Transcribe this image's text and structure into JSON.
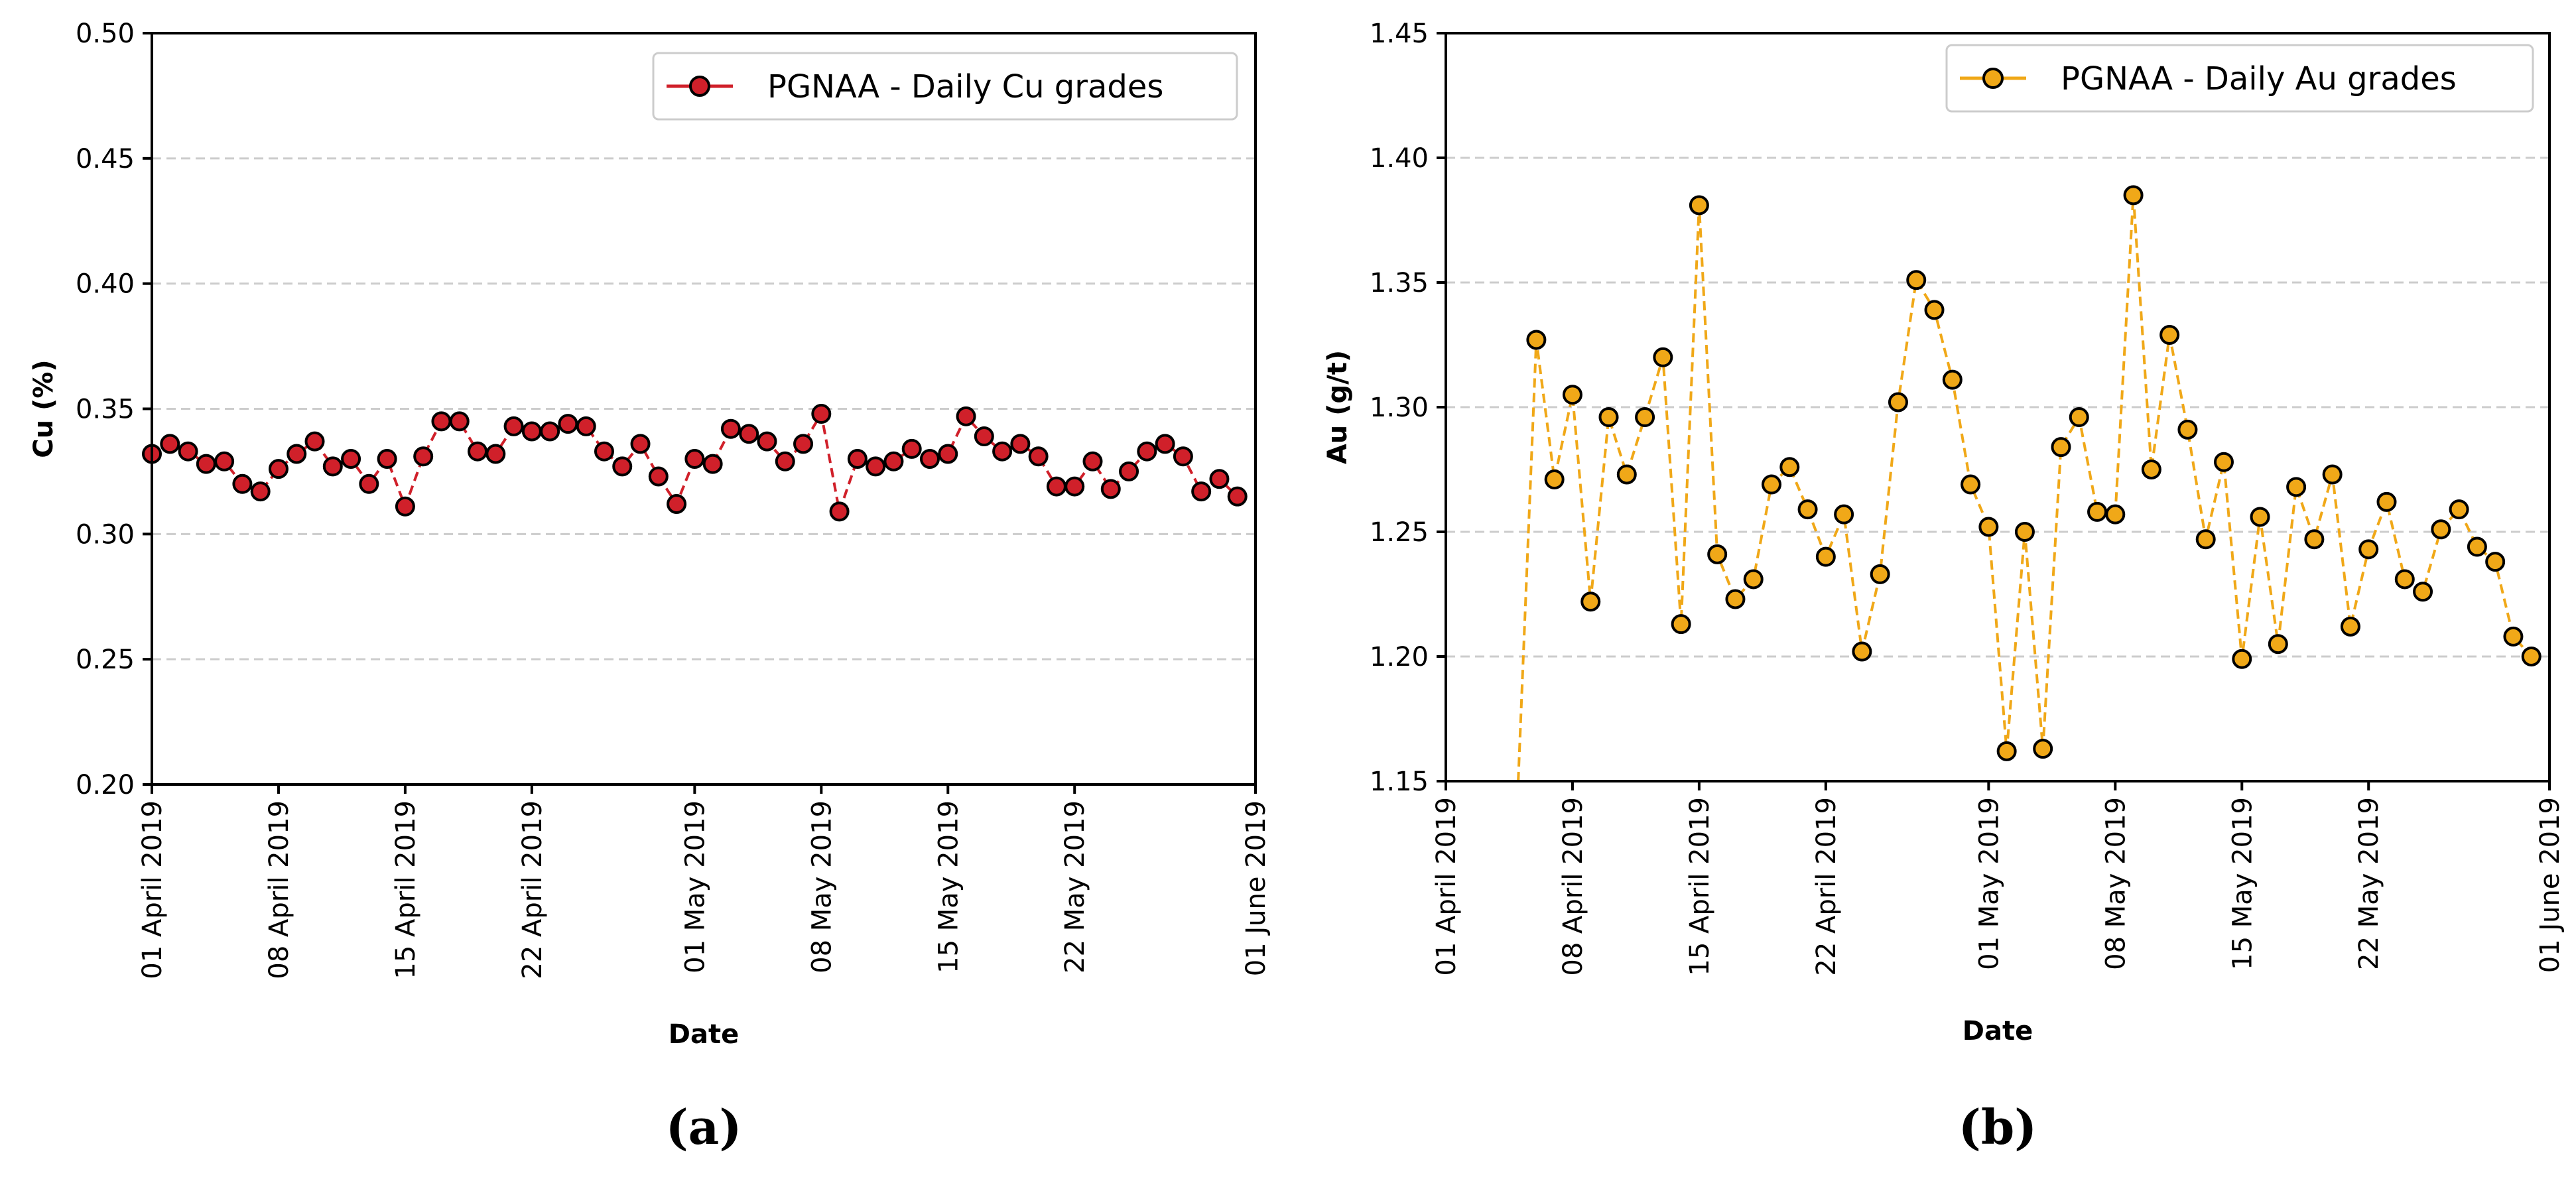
{
  "colors": {
    "cu": "#d0202a",
    "au": "#f0a818",
    "grid": "#cccccc",
    "marker_edge": "#000000"
  },
  "chart_data": [
    {
      "type": "line",
      "panel_label": "(a)",
      "xlabel": "Date",
      "ylabel": "Cu (%)",
      "ylim": [
        0.2,
        0.5
      ],
      "yticks": [
        "0.20",
        "0.25",
        "0.30",
        "0.35",
        "0.40",
        "0.45",
        "0.50"
      ],
      "xlim": [
        "2019-04-01",
        "2019-06-01"
      ],
      "xtick_dates": [
        "2019-04-01",
        "2019-04-08",
        "2019-04-15",
        "2019-04-22",
        "2019-05-01",
        "2019-05-08",
        "2019-05-15",
        "2019-05-22",
        "2019-06-01"
      ],
      "xtick_labels": [
        "01 April 2019",
        "08 April 2019",
        "15 April 2019",
        "22 April 2019",
        "01 May 2019",
        "08 May 2019",
        "15 May 2019",
        "22 May 2019",
        "01 June 2019"
      ],
      "grid": "y-dashed",
      "legend_position": "top-right",
      "series": [
        {
          "name": "PGNAA - Daily Cu grades",
          "color": "#d0202a",
          "x": [
            "2019-04-01",
            "2019-04-02",
            "2019-04-03",
            "2019-04-04",
            "2019-04-05",
            "2019-04-06",
            "2019-04-07",
            "2019-04-08",
            "2019-04-09",
            "2019-04-10",
            "2019-04-11",
            "2019-04-12",
            "2019-04-13",
            "2019-04-14",
            "2019-04-15",
            "2019-04-16",
            "2019-04-17",
            "2019-04-18",
            "2019-04-19",
            "2019-04-20",
            "2019-04-21",
            "2019-04-22",
            "2019-04-23",
            "2019-04-24",
            "2019-04-25",
            "2019-04-26",
            "2019-04-27",
            "2019-04-28",
            "2019-04-29",
            "2019-04-30",
            "2019-05-01",
            "2019-05-02",
            "2019-05-03",
            "2019-05-04",
            "2019-05-05",
            "2019-05-06",
            "2019-05-07",
            "2019-05-08",
            "2019-05-09",
            "2019-05-10",
            "2019-05-11",
            "2019-05-12",
            "2019-05-13",
            "2019-05-14",
            "2019-05-15",
            "2019-05-16",
            "2019-05-17",
            "2019-05-18",
            "2019-05-19",
            "2019-05-20",
            "2019-05-21",
            "2019-05-22",
            "2019-05-23",
            "2019-05-24",
            "2019-05-25",
            "2019-05-26",
            "2019-05-27",
            "2019-05-28",
            "2019-05-29",
            "2019-05-30",
            "2019-05-31"
          ],
          "values": [
            0.332,
            0.336,
            0.333,
            0.328,
            0.329,
            0.32,
            0.317,
            0.326,
            0.332,
            0.337,
            0.327,
            0.33,
            0.32,
            0.33,
            0.311,
            0.331,
            0.345,
            0.345,
            0.333,
            0.332,
            0.343,
            0.341,
            0.341,
            0.344,
            0.343,
            0.333,
            0.327,
            0.336,
            0.323,
            0.312,
            0.33,
            0.328,
            0.342,
            0.34,
            0.337,
            0.329,
            0.336,
            0.348,
            0.309,
            0.33,
            0.327,
            0.329,
            0.334,
            0.33,
            0.332,
            0.347,
            0.339,
            0.333,
            0.336,
            0.331,
            0.319,
            0.319,
            0.329,
            0.318,
            0.325,
            0.333,
            0.336,
            0.331,
            0.317,
            0.322,
            0.315
          ]
        }
      ]
    },
    {
      "type": "line",
      "panel_label": "(b)",
      "xlabel": "Date",
      "ylabel": "Au (g/t)",
      "ylim": [
        1.15,
        1.45
      ],
      "yticks": [
        "1.15",
        "1.20",
        "1.25",
        "1.30",
        "1.35",
        "1.40",
        "1.45"
      ],
      "xlim": [
        "2019-04-01",
        "2019-06-01"
      ],
      "xtick_dates": [
        "2019-04-01",
        "2019-04-08",
        "2019-04-15",
        "2019-04-22",
        "2019-05-01",
        "2019-05-08",
        "2019-05-15",
        "2019-05-22",
        "2019-06-01"
      ],
      "xtick_labels": [
        "01 April 2019",
        "08 April 2019",
        "15 April 2019",
        "22 April 2019",
        "01 May 2019",
        "08 May 2019",
        "15 May 2019",
        "22 May 2019",
        "01 June 2019"
      ],
      "grid": "y-dashed",
      "legend_position": "top-right",
      "series": [
        {
          "name": "PGNAA - Daily Au grades",
          "color": "#f0a818",
          "line_start": {
            "x": "2019-04-05",
            "y": 1.15
          },
          "x": [
            "2019-04-06",
            "2019-04-07",
            "2019-04-08",
            "2019-04-09",
            "2019-04-10",
            "2019-04-11",
            "2019-04-12",
            "2019-04-13",
            "2019-04-14",
            "2019-04-15",
            "2019-04-16",
            "2019-04-17",
            "2019-04-18",
            "2019-04-19",
            "2019-04-20",
            "2019-04-21",
            "2019-04-22",
            "2019-04-23",
            "2019-04-24",
            "2019-04-25",
            "2019-04-26",
            "2019-04-27",
            "2019-04-28",
            "2019-04-29",
            "2019-04-30",
            "2019-05-01",
            "2019-05-02",
            "2019-05-03",
            "2019-05-04",
            "2019-05-05",
            "2019-05-06",
            "2019-05-07",
            "2019-05-08",
            "2019-05-09",
            "2019-05-10",
            "2019-05-11",
            "2019-05-12",
            "2019-05-13",
            "2019-05-14",
            "2019-05-15",
            "2019-05-16",
            "2019-05-17",
            "2019-05-18",
            "2019-05-19",
            "2019-05-20",
            "2019-05-21",
            "2019-05-22",
            "2019-05-23",
            "2019-05-24",
            "2019-05-25",
            "2019-05-26",
            "2019-05-27",
            "2019-05-28",
            "2019-05-29",
            "2019-05-30",
            "2019-05-31"
          ],
          "values": [
            1.327,
            1.271,
            1.305,
            1.222,
            1.296,
            1.273,
            1.296,
            1.32,
            1.213,
            1.381,
            1.241,
            1.223,
            1.231,
            1.269,
            1.276,
            1.259,
            1.24,
            1.257,
            1.202,
            1.233,
            1.302,
            1.351,
            1.339,
            1.311,
            1.269,
            1.252,
            1.162,
            1.25,
            1.163,
            1.284,
            1.296,
            1.258,
            1.257,
            1.385,
            1.275,
            1.329,
            1.291,
            1.247,
            1.278,
            1.199,
            1.256,
            1.205,
            1.268,
            1.247,
            1.273,
            1.212,
            1.243,
            1.262,
            1.231,
            1.226,
            1.251,
            1.259,
            1.244,
            1.238,
            1.208,
            1.2
          ]
        }
      ]
    }
  ]
}
